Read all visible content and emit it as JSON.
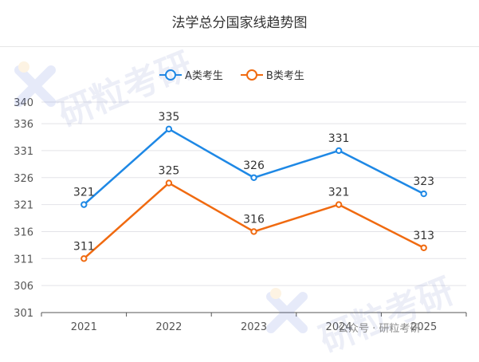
{
  "chart_data": {
    "type": "line",
    "title": "法学总分国家线趋势图",
    "categories": [
      "2021",
      "2022",
      "2023",
      "2024",
      "2025"
    ],
    "series": [
      {
        "name": "A类考生",
        "color": "#1e88e5",
        "values": [
          321,
          335,
          326,
          331,
          323
        ]
      },
      {
        "name": "B类考生",
        "color": "#f06a10",
        "values": [
          311,
          325,
          316,
          321,
          313
        ]
      }
    ],
    "yticks": [
      301,
      306,
      311,
      316,
      321,
      326,
      331,
      336,
      340
    ],
    "ylim": [
      301,
      340
    ],
    "grid": true,
    "legend": "top-center"
  },
  "watermark": {
    "text": "研粒考研",
    "credit": "公众号 · 研粒考研"
  }
}
